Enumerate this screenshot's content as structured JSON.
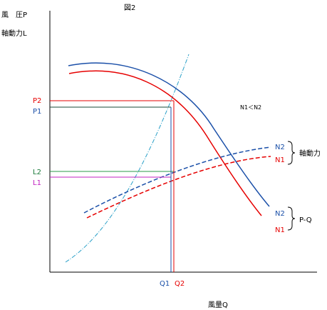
{
  "figure_title": "図2",
  "y_axis_label_1": "風　圧P",
  "y_axis_label_2": "軸動力L",
  "x_axis_label": "風量Q",
  "speed_relation": "N1＜N2",
  "labels": {
    "p2": "P2",
    "p1": "P1",
    "l2": "L2",
    "l1": "L1",
    "q1": "Q1",
    "q2": "Q2"
  },
  "legend_power": {
    "n2": "N2",
    "n1": "N1",
    "caption": "軸動力"
  },
  "legend_pq": {
    "n2": "N2",
    "n1": "N1",
    "caption": "P-Q"
  },
  "colors": {
    "n1_red": "#e60000",
    "n2_blue": "#1a4fa8",
    "system_curve": "#2aa0c8",
    "p_line_red": "#e60000",
    "p_line_green": "#1a7a3a",
    "l_line_green": "#2a9a4a",
    "l_line_magenta": "#c020c0",
    "axis": "#000000"
  }
}
